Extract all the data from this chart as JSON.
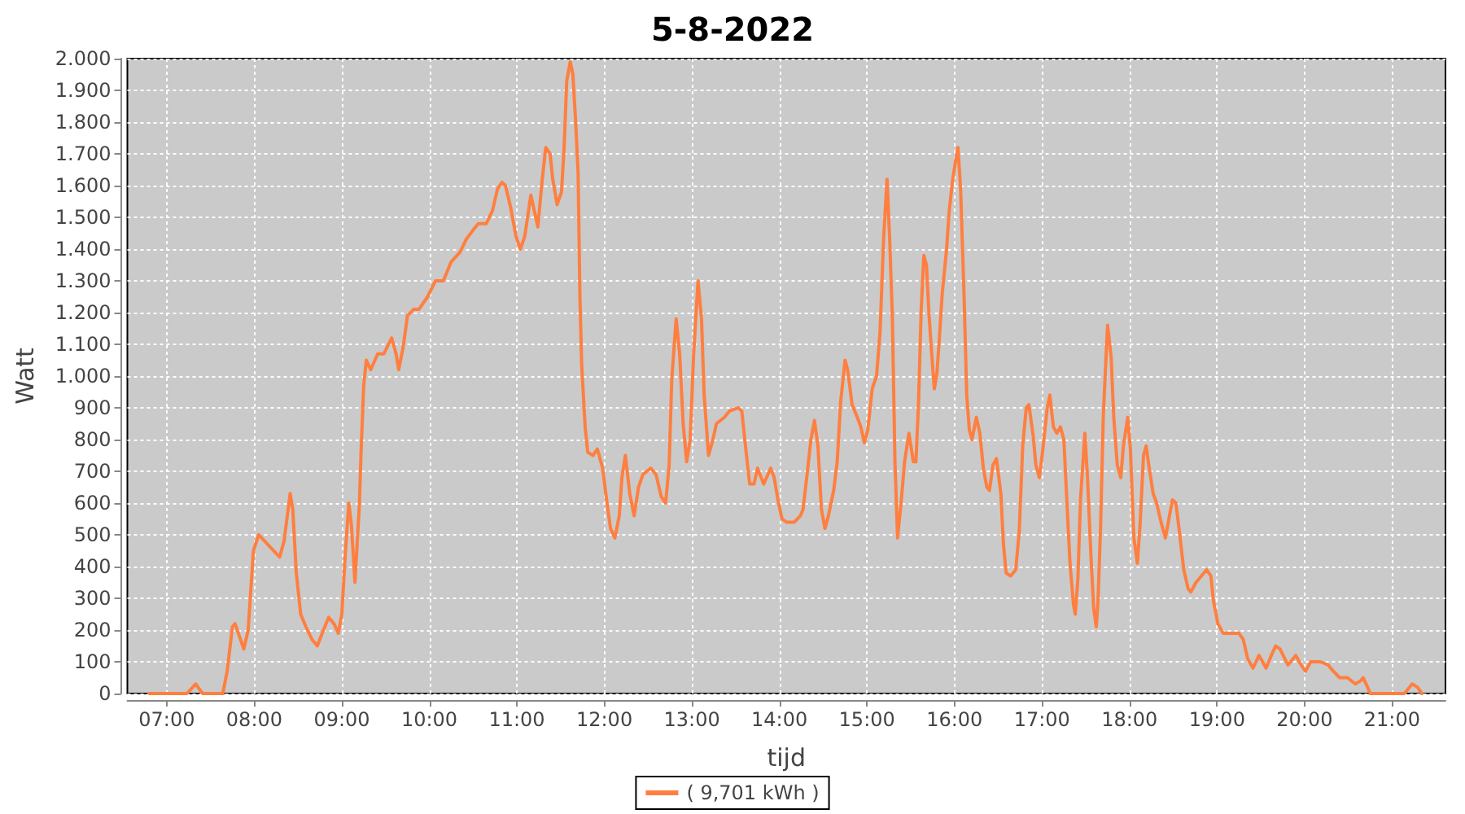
{
  "chart_data": {
    "type": "line",
    "title": "5-8-2022",
    "xlabel": "tijd",
    "ylabel": "Watt",
    "x": [
      6.8,
      7.23,
      7.33,
      7.41,
      7.64,
      7.69,
      7.75,
      7.78,
      7.88,
      7.93,
      7.99,
      8.05,
      8.12,
      8.22,
      8.29,
      8.34,
      8.41,
      8.44,
      8.48,
      8.53,
      8.59,
      8.66,
      8.72,
      8.79,
      8.85,
      8.91,
      8.96,
      9.0,
      9.04,
      9.08,
      9.11,
      9.15,
      9.2,
      9.22,
      9.25,
      9.28,
      9.33,
      9.41,
      9.48,
      9.57,
      9.62,
      9.65,
      9.7,
      9.75,
      9.82,
      9.88,
      9.98,
      10.07,
      10.16,
      10.25,
      10.35,
      10.42,
      10.5,
      10.56,
      10.65,
      10.72,
      10.78,
      10.83,
      10.87,
      10.93,
      10.99,
      11.04,
      11.09,
      11.16,
      11.2,
      11.24,
      11.29,
      11.33,
      11.38,
      11.41,
      11.46,
      11.51,
      11.54,
      11.57,
      11.61,
      11.64,
      11.67,
      11.7,
      11.72,
      11.74,
      11.76,
      11.78,
      11.81,
      11.87,
      11.92,
      11.98,
      12.03,
      12.07,
      12.12,
      12.17,
      12.2,
      12.24,
      12.29,
      12.34,
      12.39,
      12.44,
      12.53,
      12.59,
      12.65,
      12.7,
      12.74,
      12.77,
      12.82,
      12.86,
      12.9,
      12.94,
      12.98,
      13.02,
      13.07,
      13.11,
      13.14,
      13.19,
      13.24,
      13.28,
      13.37,
      13.43,
      13.53,
      13.57,
      13.62,
      13.66,
      13.71,
      13.75,
      13.82,
      13.9,
      13.94,
      13.99,
      14.03,
      14.08,
      14.17,
      14.24,
      14.27,
      14.32,
      14.36,
      14.4,
      14.44,
      14.48,
      14.52,
      14.56,
      14.62,
      14.66,
      14.7,
      14.75,
      14.78,
      14.83,
      14.89,
      14.93,
      14.97,
      15.01,
      15.06,
      15.11,
      15.15,
      15.19,
      15.23,
      15.26,
      15.29,
      15.32,
      15.35,
      15.39,
      15.43,
      15.48,
      15.53,
      15.56,
      15.59,
      15.62,
      15.65,
      15.68,
      15.71,
      15.74,
      15.77,
      15.8,
      15.83,
      15.86,
      15.91,
      15.94,
      15.98,
      16.02,
      16.04,
      16.07,
      16.11,
      16.14,
      16.17,
      16.2,
      16.25,
      16.29,
      16.33,
      16.37,
      16.4,
      16.44,
      16.48,
      16.53,
      16.56,
      16.59,
      16.64,
      16.7,
      16.74,
      16.78,
      16.82,
      16.85,
      16.9,
      16.93,
      16.97,
      17.01,
      17.06,
      17.09,
      17.13,
      17.17,
      17.21,
      17.25,
      17.28,
      17.32,
      17.36,
      17.38,
      17.41,
      17.44,
      17.49,
      17.52,
      17.56,
      17.59,
      17.62,
      17.64,
      17.67,
      17.7,
      17.74,
      17.75,
      17.79,
      17.82,
      17.86,
      17.9,
      17.93,
      17.98,
      18.01,
      18.05,
      18.09,
      18.12,
      18.16,
      18.19,
      18.22,
      18.27,
      18.31,
      18.36,
      18.41,
      18.45,
      18.49,
      18.53,
      18.57,
      18.62,
      18.67,
      18.7,
      18.76,
      18.82,
      18.88,
      18.93,
      18.96,
      19.01,
      19.07,
      19.16,
      19.25,
      19.3,
      19.35,
      19.41,
      19.48,
      19.56,
      19.62,
      19.67,
      19.72,
      19.81,
      19.9,
      19.96,
      20.01,
      20.07,
      20.18,
      20.27,
      20.33,
      20.4,
      20.49,
      20.58,
      20.64,
      20.67,
      20.72,
      20.75,
      21.14,
      21.23,
      21.29,
      21.34
    ],
    "series": [
      {
        "name": "( 9,701 kWh )",
        "color": "#ff7f40",
        "values": [
          0,
          0,
          30,
          0,
          0,
          70,
          210,
          220,
          140,
          200,
          450,
          500,
          480,
          450,
          430,
          480,
          630,
          580,
          380,
          250,
          210,
          170,
          150,
          200,
          240,
          220,
          190,
          250,
          440,
          600,
          530,
          350,
          590,
          760,
          970,
          1050,
          1020,
          1070,
          1070,
          1120,
          1070,
          1020,
          1090,
          1190,
          1210,
          1210,
          1250,
          1300,
          1300,
          1360,
          1390,
          1430,
          1460,
          1480,
          1480,
          1520,
          1590,
          1610,
          1600,
          1530,
          1440,
          1400,
          1440,
          1570,
          1520,
          1470,
          1620,
          1720,
          1700,
          1620,
          1540,
          1580,
          1720,
          1930,
          1990,
          1950,
          1810,
          1640,
          1260,
          1040,
          940,
          840,
          760,
          750,
          770,
          710,
          600,
          520,
          490,
          560,
          680,
          750,
          630,
          560,
          650,
          690,
          710,
          690,
          620,
          600,
          720,
          990,
          1180,
          1070,
          850,
          730,
          800,
          1070,
          1300,
          1180,
          940,
          750,
          800,
          850,
          870,
          890,
          900,
          890,
          760,
          660,
          660,
          710,
          660,
          710,
          680,
          600,
          550,
          540,
          540,
          560,
          580,
          700,
          800,
          860,
          780,
          580,
          520,
          560,
          640,
          730,
          920,
          1050,
          1020,
          910,
          870,
          840,
          790,
          830,
          960,
          1000,
          1140,
          1430,
          1620,
          1430,
          1190,
          730,
          490,
          600,
          730,
          820,
          730,
          730,
          920,
          1210,
          1380,
          1350,
          1190,
          1070,
          960,
          1010,
          1130,
          1260,
          1400,
          1520,
          1620,
          1690,
          1720,
          1590,
          1250,
          940,
          830,
          800,
          870,
          820,
          710,
          650,
          640,
          720,
          740,
          630,
          470,
          380,
          370,
          390,
          510,
          780,
          900,
          910,
          810,
          720,
          680,
          770,
          900,
          940,
          840,
          820,
          840,
          800,
          630,
          410,
          280,
          250,
          360,
          610,
          820,
          680,
          430,
          270,
          210,
          290,
          530,
          870,
          1110,
          1160,
          1060,
          870,
          720,
          680,
          780,
          870,
          770,
          490,
          410,
          530,
          750,
          780,
          720,
          630,
          600,
          540,
          490,
          550,
          610,
          600,
          510,
          390,
          330,
          320,
          350,
          370,
          390,
          370,
          290,
          220,
          190,
          190,
          190,
          170,
          110,
          80,
          120,
          80,
          120,
          150,
          140,
          90,
          120,
          90,
          70,
          100,
          100,
          90,
          70,
          50,
          50,
          30,
          40,
          50,
          20,
          0,
          0,
          30,
          20,
          0
        ]
      }
    ],
    "xlim": [
      6.55,
      21.61
    ],
    "xticks": [
      {
        "value": 7,
        "label": "07:00"
      },
      {
        "value": 8,
        "label": "08:00"
      },
      {
        "value": 9,
        "label": "09:00"
      },
      {
        "value": 10,
        "label": "10:00"
      },
      {
        "value": 11,
        "label": "11:00"
      },
      {
        "value": 12,
        "label": "12:00"
      },
      {
        "value": 13,
        "label": "13:00"
      },
      {
        "value": 14,
        "label": "14:00"
      },
      {
        "value": 15,
        "label": "15:00"
      },
      {
        "value": 16,
        "label": "16:00"
      },
      {
        "value": 17,
        "label": "17:00"
      },
      {
        "value": 18,
        "label": "18:00"
      },
      {
        "value": 19,
        "label": "19:00"
      },
      {
        "value": 20,
        "label": "20:00"
      },
      {
        "value": 21,
        "label": "21:00"
      }
    ],
    "ylim": [
      0,
      2000
    ],
    "yticks": [
      0,
      100,
      200,
      300,
      400,
      500,
      600,
      700,
      800,
      900,
      {
        "value": 1000,
        "label": "1.000"
      },
      {
        "value": 1100,
        "label": "1.100"
      },
      {
        "value": 1200,
        "label": "1.200"
      },
      {
        "value": 1300,
        "label": "1.300"
      },
      {
        "value": 1400,
        "label": "1.400"
      },
      {
        "value": 1500,
        "label": "1.500"
      },
      {
        "value": 1600,
        "label": "1.600"
      },
      {
        "value": 1700,
        "label": "1.700"
      },
      {
        "value": 1800,
        "label": "1.800"
      },
      {
        "value": 1900,
        "label": "1.900"
      },
      {
        "value": 2000,
        "label": "2.000"
      }
    ],
    "grid": true,
    "legend": "bottom",
    "marker": "none",
    "line_style": "solid"
  }
}
